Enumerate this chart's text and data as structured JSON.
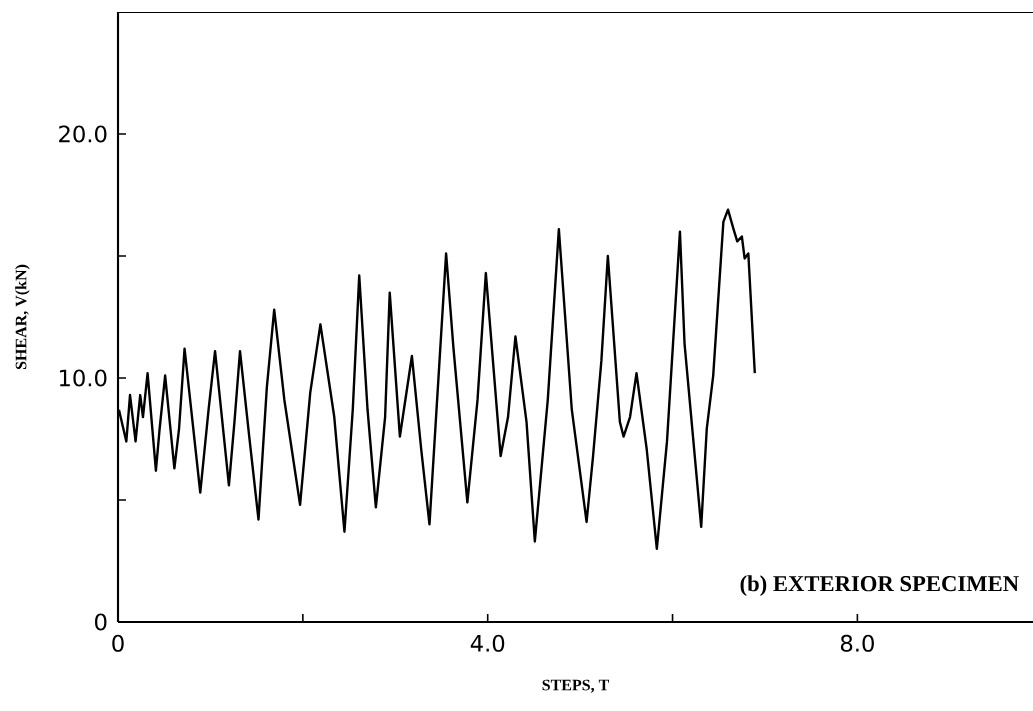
{
  "chart_data": {
    "type": "line",
    "xlabel": "STEPS, T",
    "ylabel": "SHEAR, V(kN)",
    "annotations": [
      "(b)  EXTERIOR SPECIMEN"
    ],
    "xlim": [
      0,
      9.9
    ],
    "ylim": [
      0,
      25
    ],
    "xticks": [
      0,
      {
        "value": 2,
        "label": null
      },
      {
        "value": 4,
        "label": "4.0"
      },
      {
        "value": 6,
        "label": null
      },
      {
        "value": 8,
        "label": "8.0"
      }
    ],
    "yticks": [
      0,
      {
        "value": 5,
        "label": null
      },
      {
        "value": 10,
        "label": "10.0"
      },
      {
        "value": 15,
        "label": null
      },
      {
        "value": 20,
        "label": "20.0"
      }
    ],
    "grid": false,
    "marker": "none",
    "line_style": "solid",
    "series": [
      {
        "color": "#000000",
        "x": [
          0.01,
          0.09,
          0.13,
          0.19,
          0.24,
          0.27,
          0.32,
          0.41,
          0.45,
          0.51,
          0.61,
          0.66,
          0.72,
          0.89,
          0.98,
          1.05,
          1.2,
          1.26,
          1.32,
          1.42,
          1.52,
          1.61,
          1.69,
          1.8,
          1.97,
          2.08,
          2.19,
          2.34,
          2.45,
          2.54,
          2.61,
          2.7,
          2.79,
          2.89,
          2.94,
          3.05,
          3.18,
          3.28,
          3.37,
          3.55,
          3.63,
          3.78,
          3.89,
          3.98,
          4.14,
          4.22,
          4.3,
          4.42,
          4.51,
          4.65,
          4.77,
          4.91,
          5.07,
          5.14,
          5.23,
          5.3,
          5.43,
          5.47,
          5.54,
          5.61,
          5.72,
          5.83,
          5.94,
          6.08,
          6.13,
          6.31,
          6.37,
          6.44,
          6.55,
          6.6,
          6.66,
          6.7,
          6.75,
          6.78,
          6.82,
          6.89
        ],
        "values": [
          8.7,
          7.4,
          9.3,
          7.4,
          9.3,
          8.4,
          10.2,
          6.2,
          7.9,
          10.1,
          6.3,
          7.9,
          11.2,
          5.3,
          8.7,
          11.1,
          5.6,
          8.2,
          11.1,
          7.6,
          4.2,
          9.6,
          12.8,
          9.1,
          4.8,
          9.4,
          12.2,
          8.4,
          3.7,
          8.7,
          14.2,
          8.7,
          4.7,
          8.4,
          13.5,
          7.6,
          10.9,
          7.1,
          4.0,
          15.1,
          11.2,
          4.9,
          9.1,
          14.3,
          6.8,
          8.4,
          11.7,
          8.2,
          3.3,
          9.1,
          16.1,
          8.7,
          4.1,
          6.8,
          10.7,
          15.0,
          8.2,
          7.6,
          8.4,
          10.2,
          7.1,
          3.0,
          7.4,
          16.0,
          11.4,
          3.9,
          7.9,
          10.1,
          16.4,
          16.9,
          16.1,
          15.6,
          15.8,
          14.9,
          15.1,
          10.2
        ]
      }
    ]
  }
}
